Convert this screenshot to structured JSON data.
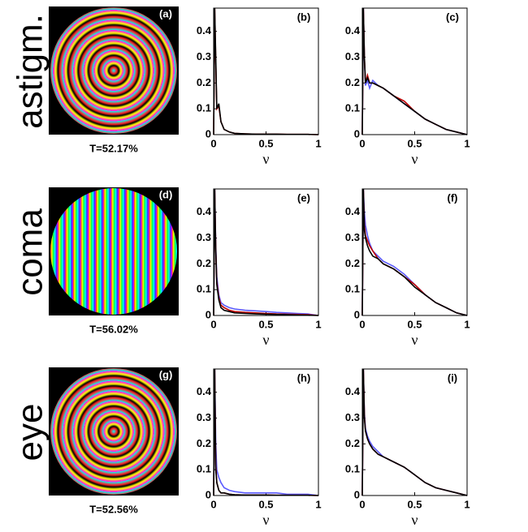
{
  "rows": [
    {
      "label": "astigm.",
      "panel": "(a)",
      "caption": "T=52.17%"
    },
    {
      "label": "coma",
      "panel": "(d)",
      "caption": "T=56.02%"
    },
    {
      "label": "eye",
      "panel": "(g)",
      "caption": "T=52.56%"
    }
  ],
  "chart_data": [
    {
      "type": "line",
      "panel": "(b)",
      "xlabel": "ν",
      "xlim": [
        0,
        1
      ],
      "ylim": [
        0,
        0.49
      ],
      "xticks": [
        0,
        0.5,
        1
      ],
      "yticks": [
        0,
        0.1,
        0.2,
        0.3,
        0.4
      ],
      "x": [
        0,
        0.01,
        0.02,
        0.03,
        0.05,
        0.07,
        0.1,
        0.15,
        0.2,
        0.3,
        0.4,
        0.5,
        0.6,
        0.7,
        0.8,
        0.9,
        1
      ],
      "series": [
        {
          "color": "#c00000",
          "values": [
            0,
            0.49,
            0.28,
            0.1,
            0.11,
            0.05,
            0.02,
            0.01,
            0.005,
            0.003,
            0.002,
            0.002,
            0.002,
            0.001,
            0.001,
            0.001,
            0
          ]
        },
        {
          "color": "#000000",
          "values": [
            0,
            0.49,
            0.3,
            0.1,
            0.12,
            0.05,
            0.02,
            0.01,
            0.005,
            0.003,
            0.002,
            0.002,
            0.002,
            0.001,
            0.001,
            0.001,
            0
          ]
        }
      ]
    },
    {
      "type": "line",
      "panel": "(c)",
      "xlabel": "ν",
      "xlim": [
        0,
        1
      ],
      "ylim": [
        0,
        0.49
      ],
      "xticks": [
        0,
        0.5,
        1
      ],
      "yticks": [
        0,
        0.1,
        0.2,
        0.3,
        0.4
      ],
      "x": [
        0,
        0.01,
        0.02,
        0.03,
        0.05,
        0.07,
        0.1,
        0.15,
        0.2,
        0.3,
        0.4,
        0.5,
        0.6,
        0.7,
        0.8,
        0.9,
        1
      ],
      "series": [
        {
          "color": "#5b5bff",
          "values": [
            0,
            0.49,
            0.29,
            0.19,
            0.21,
            0.18,
            0.21,
            0.19,
            0.18,
            0.15,
            0.12,
            0.09,
            0.06,
            0.04,
            0.02,
            0.01,
            0
          ]
        },
        {
          "color": "#c00000",
          "values": [
            0,
            0.49,
            0.3,
            0.2,
            0.23,
            0.2,
            0.2,
            0.19,
            0.18,
            0.15,
            0.13,
            0.09,
            0.06,
            0.04,
            0.02,
            0.01,
            0
          ]
        },
        {
          "color": "#000000",
          "values": [
            0,
            0.49,
            0.3,
            0.2,
            0.22,
            0.2,
            0.2,
            0.19,
            0.18,
            0.15,
            0.12,
            0.09,
            0.06,
            0.04,
            0.02,
            0.01,
            0
          ]
        }
      ]
    },
    {
      "type": "line",
      "panel": "(e)",
      "xlabel": "ν",
      "xlim": [
        0,
        1
      ],
      "ylim": [
        0,
        0.49
      ],
      "xticks": [
        0,
        0.5,
        1
      ],
      "yticks": [
        0,
        0.1,
        0.2,
        0.3,
        0.4
      ],
      "x": [
        0,
        0.01,
        0.02,
        0.03,
        0.05,
        0.07,
        0.1,
        0.15,
        0.2,
        0.3,
        0.4,
        0.5,
        0.6,
        0.7,
        0.8,
        0.9,
        1
      ],
      "series": [
        {
          "color": "#5b5bff",
          "values": [
            0,
            0.49,
            0.27,
            0.15,
            0.08,
            0.05,
            0.04,
            0.03,
            0.025,
            0.02,
            0.018,
            0.015,
            0.012,
            0.01,
            0.008,
            0.006,
            0
          ]
        },
        {
          "color": "#c00000",
          "values": [
            0,
            0.49,
            0.26,
            0.13,
            0.07,
            0.04,
            0.03,
            0.02,
            0.015,
            0.012,
            0.01,
            0.008,
            0.006,
            0.005,
            0.004,
            0.003,
            0
          ]
        },
        {
          "color": "#000000",
          "values": [
            0,
            0.49,
            0.25,
            0.12,
            0.06,
            0.03,
            0.02,
            0.015,
            0.01,
            0.008,
            0.006,
            0.005,
            0.004,
            0.003,
            0.002,
            0.001,
            0
          ]
        }
      ]
    },
    {
      "type": "line",
      "panel": "(f)",
      "xlabel": "ν",
      "xlim": [
        0,
        1
      ],
      "ylim": [
        0,
        0.49
      ],
      "xticks": [
        0,
        0.5,
        1
      ],
      "yticks": [
        0,
        0.1,
        0.2,
        0.3,
        0.4
      ],
      "x": [
        0,
        0.01,
        0.02,
        0.03,
        0.05,
        0.07,
        0.1,
        0.15,
        0.2,
        0.3,
        0.4,
        0.5,
        0.6,
        0.7,
        0.8,
        0.9,
        1
      ],
      "series": [
        {
          "color": "#5b5bff",
          "values": [
            0,
            0.49,
            0.4,
            0.35,
            0.31,
            0.28,
            0.25,
            0.23,
            0.21,
            0.19,
            0.16,
            0.12,
            0.08,
            0.05,
            0.03,
            0.01,
            0
          ]
        },
        {
          "color": "#c00000",
          "values": [
            0,
            0.49,
            0.35,
            0.31,
            0.29,
            0.27,
            0.25,
            0.22,
            0.2,
            0.18,
            0.15,
            0.12,
            0.08,
            0.05,
            0.03,
            0.01,
            0
          ]
        },
        {
          "color": "#000000",
          "values": [
            0,
            0.49,
            0.33,
            0.3,
            0.27,
            0.25,
            0.23,
            0.22,
            0.2,
            0.18,
            0.15,
            0.11,
            0.08,
            0.05,
            0.03,
            0.01,
            0
          ]
        }
      ]
    },
    {
      "type": "line",
      "panel": "(h)",
      "xlabel": "ν",
      "xlim": [
        0,
        1
      ],
      "ylim": [
        0,
        0.49
      ],
      "xticks": [
        0,
        0.5,
        1
      ],
      "yticks": [
        0,
        0.1,
        0.2,
        0.3,
        0.4
      ],
      "x": [
        0,
        0.01,
        0.02,
        0.03,
        0.05,
        0.07,
        0.1,
        0.15,
        0.2,
        0.3,
        0.4,
        0.5,
        0.6,
        0.7,
        0.8,
        0.9,
        1
      ],
      "series": [
        {
          "color": "#5b5bff",
          "values": [
            0,
            0.49,
            0.2,
            0.1,
            0.07,
            0.05,
            0.03,
            0.02,
            0.015,
            0.01,
            0.01,
            0.01,
            0.01,
            0.005,
            0.005,
            0.005,
            0
          ]
        },
        {
          "color": "#c00000",
          "values": [
            0,
            0.49,
            0.12,
            0.05,
            0.02,
            0.01,
            0.01,
            0.005,
            0.003,
            0.002,
            0.002,
            0.002,
            0.001,
            0.001,
            0.001,
            0.001,
            0
          ]
        },
        {
          "color": "#000000",
          "values": [
            0,
            0.49,
            0.1,
            0.05,
            0.02,
            0.01,
            0.01,
            0.005,
            0.003,
            0.002,
            0.002,
            0.002,
            0.001,
            0.001,
            0.001,
            0.001,
            0
          ]
        }
      ]
    },
    {
      "type": "line",
      "panel": "(i)",
      "xlabel": "ν",
      "xlim": [
        0,
        1
      ],
      "ylim": [
        0,
        0.49
      ],
      "xticks": [
        0,
        0.5,
        1
      ],
      "yticks": [
        0,
        0.1,
        0.2,
        0.3,
        0.4
      ],
      "x": [
        0,
        0.01,
        0.02,
        0.03,
        0.05,
        0.07,
        0.1,
        0.15,
        0.2,
        0.3,
        0.4,
        0.5,
        0.6,
        0.7,
        0.8,
        0.9,
        1
      ],
      "series": [
        {
          "color": "#5b5bff",
          "values": [
            0,
            0.49,
            0.32,
            0.26,
            0.23,
            0.21,
            0.19,
            0.17,
            0.15,
            0.13,
            0.11,
            0.08,
            0.05,
            0.03,
            0.02,
            0.01,
            0
          ]
        },
        {
          "color": "#c00000",
          "values": [
            0,
            0.49,
            0.31,
            0.25,
            0.22,
            0.2,
            0.18,
            0.16,
            0.15,
            0.13,
            0.11,
            0.08,
            0.05,
            0.03,
            0.02,
            0.01,
            0
          ]
        },
        {
          "color": "#000000",
          "values": [
            0,
            0.49,
            0.3,
            0.25,
            0.22,
            0.2,
            0.18,
            0.16,
            0.15,
            0.13,
            0.11,
            0.08,
            0.05,
            0.03,
            0.02,
            0.01,
            0
          ]
        }
      ]
    }
  ]
}
